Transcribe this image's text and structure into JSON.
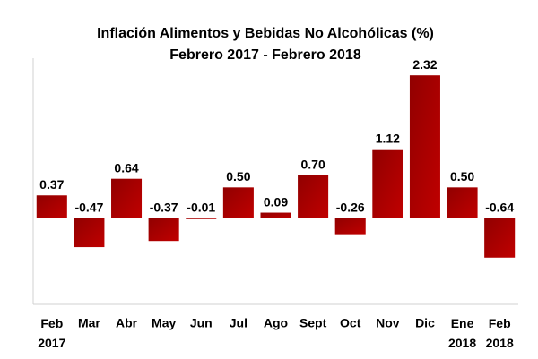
{
  "chart_data": {
    "type": "bar",
    "title": "Inflación Alimentos y Bebidas No Alcohólicas (%)",
    "subtitle": "Febrero 2017 - Febrero 2018",
    "categories": [
      "Feb 2017",
      "Mar",
      "Abr",
      "May",
      "Jun",
      "Jul",
      "Ago",
      "Sept",
      "Oct",
      "Nov",
      "Dic",
      "Ene 2018",
      "Feb 2018"
    ],
    "values": [
      0.37,
      -0.47,
      0.64,
      -0.37,
      -0.01,
      0.5,
      0.09,
      0.7,
      -0.26,
      1.12,
      2.32,
      0.5,
      -0.64
    ],
    "value_labels": [
      "0.37",
      "-0.47",
      "0.64",
      "-0.37",
      "-0.01",
      "0.50",
      "0.09",
      "0.70",
      "-0.26",
      "1.12",
      "2.32",
      "0.50",
      "-0.64"
    ],
    "color": "#c00000",
    "ylim": [
      -1.4,
      2.6
    ]
  }
}
